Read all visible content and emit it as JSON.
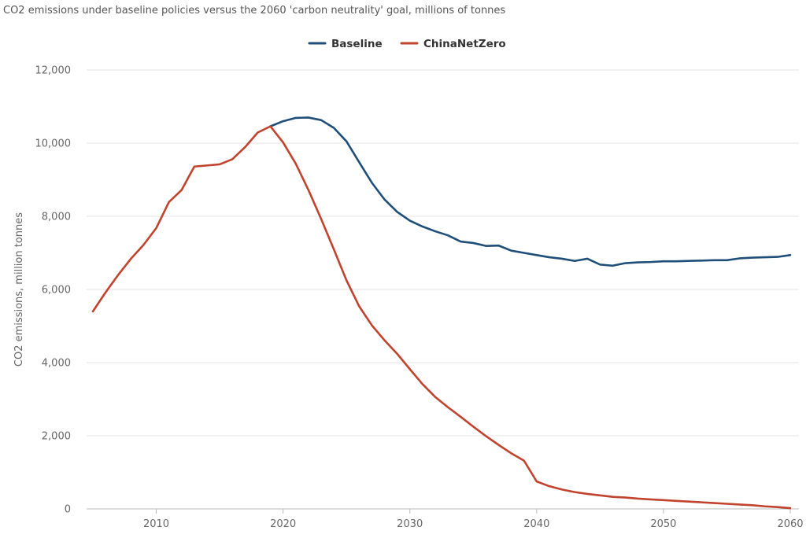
{
  "chart_data": {
    "type": "line",
    "title": "CO2 emissions under baseline policies versus the 2060 'carbon neutrality' goal, millions of tonnes",
    "ylabel": "CO2 emissions, million tonnes",
    "xlabel": "",
    "xlim": [
      2005,
      2060
    ],
    "ylim": [
      0,
      12000
    ],
    "grid": true,
    "legend_position": "top-center",
    "x_ticks": [
      2010,
      2020,
      2030,
      2040,
      2050,
      2060
    ],
    "x_tick_labels": [
      "2010",
      "2020",
      "2030",
      "2040",
      "2050",
      "2060"
    ],
    "y_ticks": [
      0,
      2000,
      4000,
      6000,
      8000,
      10000,
      12000
    ],
    "y_tick_labels": [
      "0",
      "2,000",
      "4,000",
      "6,000",
      "8,000",
      "10,000",
      "12,000"
    ],
    "series": [
      {
        "name": "Baseline",
        "color": "#1f4e79",
        "x": [
          2019,
          2020,
          2021,
          2022,
          2023,
          2024,
          2025,
          2026,
          2027,
          2028,
          2029,
          2030,
          2031,
          2032,
          2033,
          2034,
          2035,
          2036,
          2037,
          2038,
          2039,
          2040,
          2041,
          2042,
          2043,
          2044,
          2045,
          2046,
          2047,
          2048,
          2049,
          2050,
          2051,
          2052,
          2053,
          2054,
          2055,
          2056,
          2057,
          2058,
          2059,
          2060
        ],
        "values": [
          10460,
          10600,
          10690,
          10700,
          10630,
          10420,
          10050,
          9480,
          8920,
          8460,
          8120,
          7880,
          7720,
          7590,
          7480,
          7310,
          7270,
          7190,
          7200,
          7060,
          7000,
          6940,
          6880,
          6840,
          6780,
          6840,
          6680,
          6650,
          6720,
          6740,
          6750,
          6770,
          6770,
          6780,
          6790,
          6800,
          6800,
          6850,
          6870,
          6880,
          6890,
          6940
        ]
      },
      {
        "name": "ChinaNetZero",
        "color": "#c0432d",
        "x": [
          2005,
          2006,
          2007,
          2008,
          2009,
          2010,
          2011,
          2012,
          2013,
          2014,
          2015,
          2016,
          2017,
          2018,
          2019,
          2020,
          2021,
          2022,
          2023,
          2024,
          2025,
          2026,
          2027,
          2028,
          2029,
          2030,
          2031,
          2032,
          2033,
          2034,
          2035,
          2036,
          2037,
          2038,
          2039,
          2040,
          2041,
          2042,
          2043,
          2044,
          2045,
          2046,
          2047,
          2048,
          2049,
          2050,
          2051,
          2052,
          2053,
          2054,
          2055,
          2056,
          2057,
          2058,
          2059,
          2060
        ],
        "values": [
          5400,
          5920,
          6400,
          6840,
          7220,
          7680,
          8390,
          8720,
          9360,
          9390,
          9420,
          9560,
          9890,
          10290,
          10460,
          10020,
          9440,
          8720,
          7930,
          7100,
          6250,
          5540,
          5020,
          4610,
          4240,
          3820,
          3410,
          3060,
          2780,
          2520,
          2250,
          1990,
          1750,
          1520,
          1320,
          750,
          620,
          530,
          460,
          410,
          370,
          330,
          310,
          280,
          260,
          240,
          220,
          200,
          180,
          160,
          140,
          120,
          100,
          70,
          50,
          20
        ]
      }
    ]
  }
}
